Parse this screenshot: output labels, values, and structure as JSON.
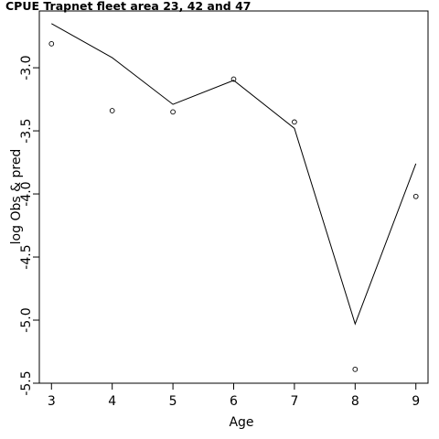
{
  "chart_data": {
    "type": "line",
    "title": "CPUE Trapnet fleet area 23, 42 and 47",
    "xlabel": "Age",
    "ylabel": "log Obs & pred",
    "xlim": [
      2.8,
      9.2
    ],
    "ylim": [
      -5.5,
      -2.55
    ],
    "x_ticks": [
      3,
      4,
      5,
      6,
      7,
      8,
      9
    ],
    "x_tick_labels": [
      "3",
      "4",
      "5",
      "6",
      "7",
      "8",
      "9"
    ],
    "y_ticks": [
      -3.0,
      -3.5,
      -4.0,
      -4.5,
      -5.0,
      -5.5
    ],
    "y_tick_labels": [
      "-3.0",
      "-3.5",
      "-4.0",
      "-4.5",
      "-5.0",
      "-5.5"
    ],
    "grid": false,
    "series": [
      {
        "style": "line",
        "x": [
          3,
          4,
          5,
          6,
          7,
          8,
          9
        ],
        "values": [
          -2.65,
          -2.92,
          -3.29,
          -3.1,
          -3.48,
          -5.03,
          -3.76
        ]
      },
      {
        "style": "points",
        "x": [
          3,
          4,
          5,
          6,
          7,
          8,
          9
        ],
        "values": [
          -2.81,
          -3.34,
          -3.35,
          -3.09,
          -3.43,
          -5.39,
          -4.02
        ]
      }
    ]
  }
}
